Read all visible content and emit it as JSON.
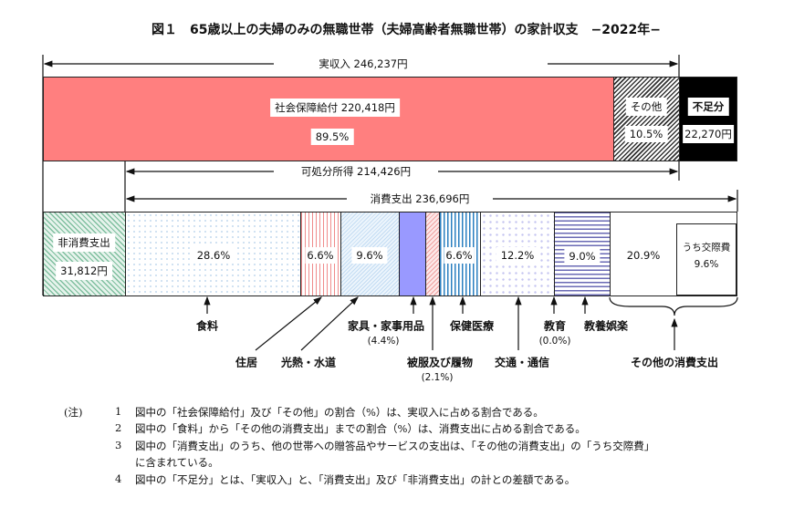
{
  "title": "図１　65歳以上の夫婦のみの無職世帯（夫婦高齢者無職世帯）の家計収支　−2022年−",
  "income": {
    "label": "実収入 246,237円",
    "social_security": {
      "label": "社会保障給付 220,418円",
      "pct": "89.5%",
      "color": "#ff7f7f"
    },
    "other": {
      "label": "その他",
      "pct": "10.5%"
    },
    "shortfall": {
      "label": "不足分",
      "amount": "22,270円"
    }
  },
  "disposable_income": "可処分所得 214,426円",
  "consumption_total": "消費支出 236,696円",
  "non_consumption": {
    "label": "非消費支出",
    "amount": "31,812円"
  },
  "segments": [
    {
      "name": "食料",
      "pct": "28.6%"
    },
    {
      "name": "住居",
      "pct": "6.6%"
    },
    {
      "name": "光熱・水道",
      "pct": "9.6%"
    },
    {
      "name": "家具・家事用品",
      "pct": "(4.4%)",
      "color": "#9999ff"
    },
    {
      "name": "被服及び履物",
      "pct": "(2.1%)"
    },
    {
      "name": "保健医療",
      "pct": "6.6%"
    },
    {
      "name": "交通・通信",
      "pct": "12.2%"
    },
    {
      "name": "教育",
      "pct": "(0.0%)"
    },
    {
      "name": "教養娯楽",
      "pct": "9.0%"
    },
    {
      "name": "その他の消費支出",
      "pct": "20.9%",
      "sub_label": "うち交際費",
      "sub_pct": "9.6%"
    }
  ],
  "notes": {
    "head": "(注)",
    "items": [
      {
        "num": "1",
        "text": "図中の「社会保障給付」及び「その他」の割合（%）は、実収入に占める割合である。"
      },
      {
        "num": "2",
        "text": "図中の「食料」から「その他の消費支出」までの割合（%）は、消費支出に占める割合である。"
      },
      {
        "num": "3",
        "text": "図中の「消費支出」のうち、他の世帯への贈答品やサービスの支出は、「その他の消費支出」の「うち交際費」"
      },
      {
        "num": "",
        "text": "に含まれている。"
      },
      {
        "num": "4",
        "text": "図中の「不足分」とは、「実収入」と、「消費支出」及び「非消費支出」の計との差額である。"
      }
    ]
  }
}
